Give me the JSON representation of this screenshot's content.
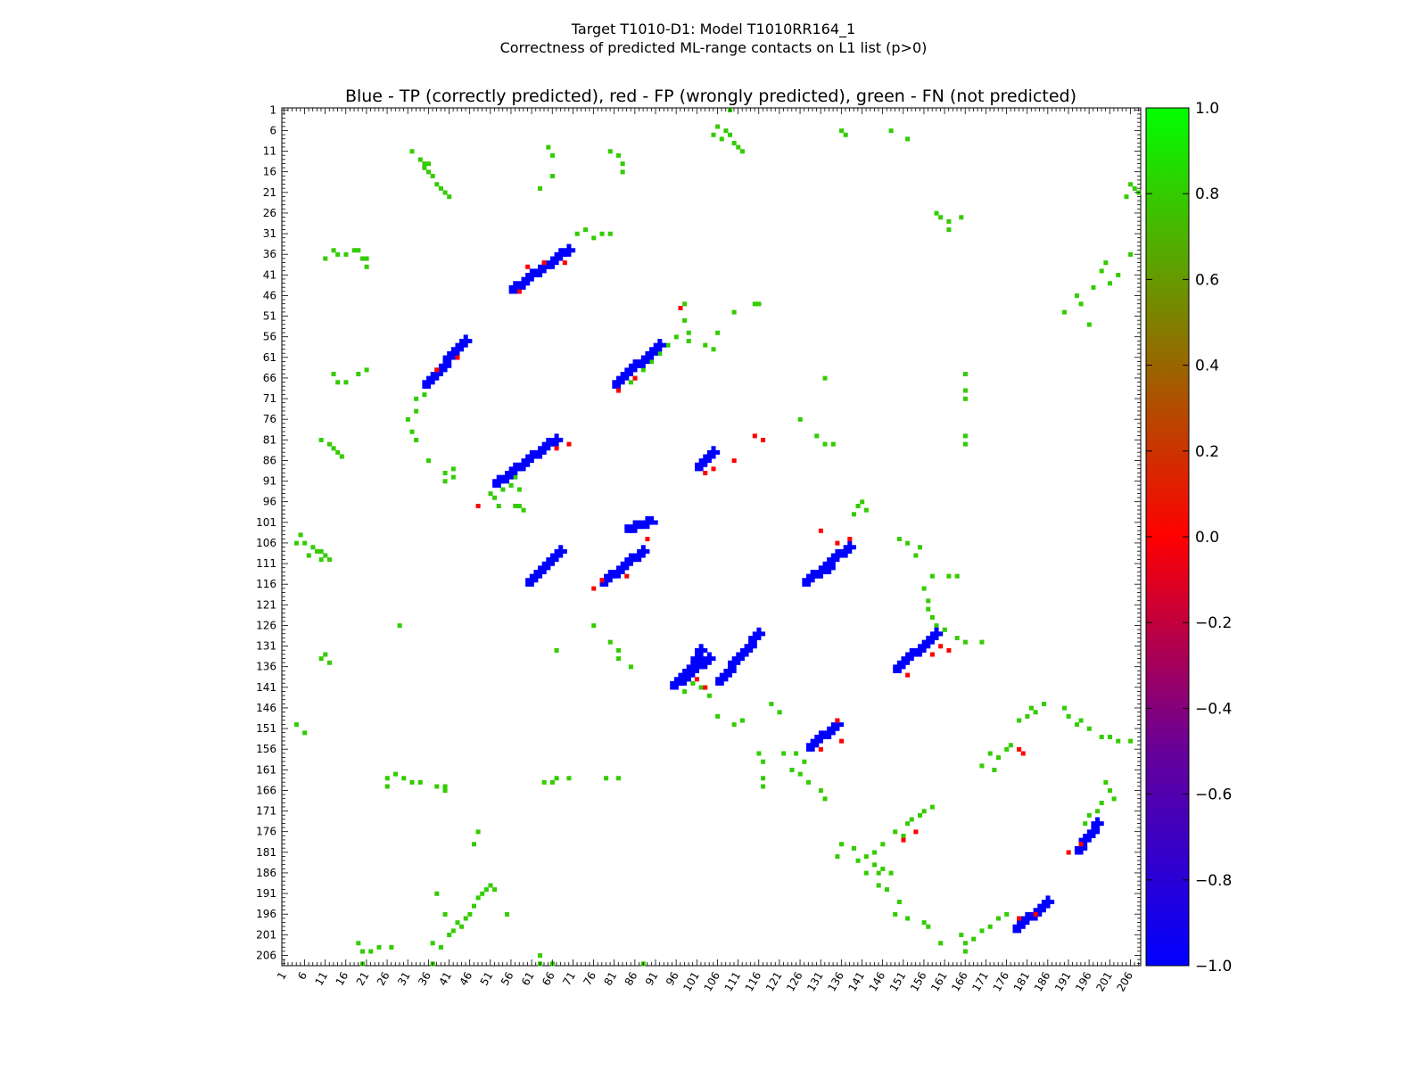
{
  "header": {
    "line1": "Target T1010-D1: Model T1010RR164_1",
    "line2": "Correctness of predicted ML-range contacts on L1 list (p>0)"
  },
  "colors": {
    "tp": "#0000ff",
    "fp": "#ff0000",
    "fn": "#33cc00",
    "background": "#ffffff"
  },
  "chart_data": {
    "type": "heatmap",
    "title": "Blue - TP (correctly predicted), red - FP (wrongly predicted), green - FN (not predicted)",
    "xlabel": "",
    "ylabel": "",
    "xlim": [
      1,
      208
    ],
    "ylim": [
      1,
      208
    ],
    "y_inverted": true,
    "tick_labels": [
      "1",
      "6",
      "11",
      "16",
      "21",
      "26",
      "31",
      "36",
      "41",
      "46",
      "51",
      "56",
      "61",
      "66",
      "71",
      "76",
      "81",
      "86",
      "91",
      "96",
      "101",
      "106",
      "111",
      "116",
      "121",
      "126",
      "131",
      "136",
      "141",
      "146",
      "151",
      "156",
      "161",
      "166",
      "171",
      "176",
      "181",
      "186",
      "191",
      "196",
      "201",
      "206"
    ],
    "colorbar": {
      "min": -1.0,
      "max": 1.0,
      "ticks": [
        "1.0",
        "0.8",
        "0.6",
        "0.4",
        "0.2",
        "0.0",
        "−0.2",
        "−0.4",
        "−0.6",
        "−0.8",
        "−1.0"
      ]
    },
    "legend_values": {
      "TP": -1.0,
      "FP": 0.0,
      "FN": 1.0
    },
    "tp_segments": [
      [
        56,
        45,
        70,
        35
      ],
      [
        81,
        68,
        92,
        58
      ],
      [
        35,
        68,
        45,
        57
      ],
      [
        52,
        92,
        67,
        81
      ],
      [
        78,
        116,
        88,
        108
      ],
      [
        106,
        140,
        116,
        128
      ],
      [
        60,
        116,
        68,
        108
      ],
      [
        84,
        103,
        90,
        101
      ],
      [
        95,
        141,
        104,
        134
      ],
      [
        97,
        140,
        102,
        132
      ],
      [
        127,
        116,
        138,
        107
      ],
      [
        130,
        114,
        133,
        112
      ],
      [
        149,
        137,
        159,
        128
      ],
      [
        128,
        156,
        135,
        150
      ],
      [
        193,
        181,
        198,
        174
      ],
      [
        178,
        200,
        186,
        193
      ],
      [
        101,
        88,
        105,
        84
      ]
    ],
    "fp_points": [
      [
        58,
        45
      ],
      [
        60,
        39
      ],
      [
        64,
        38
      ],
      [
        69,
        38
      ],
      [
        43,
        61
      ],
      [
        38,
        64
      ],
      [
        82,
        69
      ],
      [
        86,
        66
      ],
      [
        70,
        82
      ],
      [
        67,
        83
      ],
      [
        76,
        117
      ],
      [
        78,
        115
      ],
      [
        84,
        114
      ],
      [
        89,
        105
      ],
      [
        117,
        81
      ],
      [
        115,
        80
      ],
      [
        110,
        86
      ],
      [
        105,
        88
      ],
      [
        103,
        89
      ],
      [
        103,
        141
      ],
      [
        101,
        139
      ],
      [
        135,
        106
      ],
      [
        131,
        103
      ],
      [
        138,
        105
      ],
      [
        136,
        154
      ],
      [
        135,
        149
      ],
      [
        131,
        156
      ],
      [
        154,
        176
      ],
      [
        151,
        178
      ],
      [
        158,
        133
      ],
      [
        152,
        138
      ],
      [
        179,
        156
      ],
      [
        180,
        157
      ],
      [
        194,
        179
      ],
      [
        191,
        181
      ],
      [
        183,
        196
      ],
      [
        179,
        197
      ],
      [
        48,
        97
      ],
      [
        97,
        49
      ],
      [
        160,
        131
      ],
      [
        162,
        132
      ]
    ],
    "fn_points": [
      [
        108,
        6
      ],
      [
        110,
        9
      ],
      [
        107,
        8
      ],
      [
        111,
        10
      ],
      [
        109,
        7
      ],
      [
        112,
        11
      ],
      [
        106,
        5
      ],
      [
        105,
        7
      ],
      [
        109,
        1
      ],
      [
        65,
        10
      ],
      [
        66,
        12
      ],
      [
        66,
        17
      ],
      [
        63,
        20
      ],
      [
        80,
        11
      ],
      [
        82,
        12
      ],
      [
        83,
        14
      ],
      [
        83,
        16
      ],
      [
        72,
        31
      ],
      [
        74,
        30
      ],
      [
        76,
        32
      ],
      [
        78,
        31
      ],
      [
        80,
        31
      ],
      [
        35,
        14
      ],
      [
        36,
        14
      ],
      [
        36,
        16
      ],
      [
        37,
        17
      ],
      [
        38,
        19
      ],
      [
        39,
        20
      ],
      [
        40,
        21
      ],
      [
        41,
        22
      ],
      [
        20,
        37
      ],
      [
        21,
        37
      ],
      [
        21,
        39
      ],
      [
        18,
        35
      ],
      [
        19,
        35
      ],
      [
        16,
        36
      ],
      [
        14,
        36
      ],
      [
        13,
        35
      ],
      [
        11,
        37
      ],
      [
        32,
        11
      ],
      [
        34,
        13
      ],
      [
        35,
        15
      ],
      [
        136,
        6
      ],
      [
        137,
        7
      ],
      [
        148,
        6
      ],
      [
        152,
        8
      ],
      [
        159,
        26
      ],
      [
        160,
        27
      ],
      [
        162,
        28
      ],
      [
        162,
        30
      ],
      [
        165,
        27
      ],
      [
        206,
        19
      ],
      [
        207,
        20
      ],
      [
        208,
        21
      ],
      [
        205,
        22
      ],
      [
        199,
        40
      ],
      [
        203,
        41
      ],
      [
        206,
        36
      ],
      [
        200,
        38
      ],
      [
        201,
        43
      ],
      [
        197,
        44
      ],
      [
        193,
        46
      ],
      [
        194,
        48
      ],
      [
        190,
        50
      ],
      [
        196,
        53
      ],
      [
        115,
        48
      ],
      [
        116,
        48
      ],
      [
        110,
        50
      ],
      [
        106,
        55
      ],
      [
        98,
        52
      ],
      [
        99,
        55
      ],
      [
        99,
        57
      ],
      [
        98,
        48
      ],
      [
        103,
        58
      ],
      [
        105,
        59
      ],
      [
        96,
        56
      ],
      [
        94,
        58
      ],
      [
        92,
        60
      ],
      [
        90,
        62
      ],
      [
        88,
        64
      ],
      [
        86,
        66
      ],
      [
        85,
        67
      ],
      [
        13,
        65
      ],
      [
        14,
        67
      ],
      [
        16,
        67
      ],
      [
        19,
        65
      ],
      [
        21,
        64
      ],
      [
        33,
        71
      ],
      [
        35,
        70
      ],
      [
        33,
        74
      ],
      [
        31,
        76
      ],
      [
        32,
        79
      ],
      [
        33,
        81
      ],
      [
        10,
        81
      ],
      [
        12,
        82
      ],
      [
        13,
        83
      ],
      [
        14,
        84
      ],
      [
        15,
        85
      ],
      [
        36,
        86
      ],
      [
        40,
        89
      ],
      [
        42,
        90
      ],
      [
        40,
        91
      ],
      [
        42,
        88
      ],
      [
        51,
        94
      ],
      [
        52,
        95
      ],
      [
        53,
        97
      ],
      [
        57,
        97
      ],
      [
        58,
        97
      ],
      [
        59,
        98
      ],
      [
        132,
        66
      ],
      [
        166,
        65
      ],
      [
        166,
        69
      ],
      [
        166,
        71
      ],
      [
        130,
        80
      ],
      [
        132,
        82
      ],
      [
        134,
        82
      ],
      [
        126,
        76
      ],
      [
        166,
        80
      ],
      [
        166,
        82
      ],
      [
        57,
        90
      ],
      [
        56,
        92
      ],
      [
        58,
        93
      ],
      [
        54,
        93
      ],
      [
        5,
        104
      ],
      [
        4,
        106
      ],
      [
        6,
        106
      ],
      [
        8,
        107
      ],
      [
        10,
        108
      ],
      [
        11,
        109
      ],
      [
        12,
        110
      ],
      [
        9,
        108
      ],
      [
        7,
        109
      ],
      [
        10,
        110
      ],
      [
        140,
        97
      ],
      [
        139,
        99
      ],
      [
        141,
        96
      ],
      [
        142,
        98
      ],
      [
        150,
        105
      ],
      [
        152,
        106
      ],
      [
        155,
        107
      ],
      [
        154,
        109
      ],
      [
        158,
        114
      ],
      [
        162,
        114
      ],
      [
        164,
        114
      ],
      [
        156,
        117
      ],
      [
        157,
        120
      ],
      [
        157,
        122
      ],
      [
        158,
        124
      ],
      [
        159,
        126
      ],
      [
        160,
        128
      ],
      [
        161,
        127
      ],
      [
        164,
        129
      ],
      [
        166,
        130
      ],
      [
        170,
        130
      ],
      [
        29,
        126
      ],
      [
        76,
        126
      ],
      [
        80,
        130
      ],
      [
        82,
        132
      ],
      [
        82,
        134
      ],
      [
        85,
        136
      ],
      [
        10,
        134
      ],
      [
        11,
        133
      ],
      [
        12,
        135
      ],
      [
        67,
        132
      ],
      [
        100,
        140
      ],
      [
        102,
        141
      ],
      [
        104,
        143
      ],
      [
        98,
        142
      ],
      [
        106,
        148
      ],
      [
        112,
        149
      ],
      [
        110,
        150
      ],
      [
        119,
        145
      ],
      [
        121,
        147
      ],
      [
        4,
        150
      ],
      [
        6,
        152
      ],
      [
        176,
        156
      ],
      [
        177,
        155
      ],
      [
        174,
        158
      ],
      [
        172,
        157
      ],
      [
        170,
        160
      ],
      [
        173,
        161
      ],
      [
        179,
        149
      ],
      [
        181,
        148
      ],
      [
        182,
        146
      ],
      [
        183,
        147
      ],
      [
        185,
        145
      ],
      [
        190,
        146
      ],
      [
        191,
        148
      ],
      [
        194,
        149
      ],
      [
        196,
        151
      ],
      [
        199,
        153
      ],
      [
        201,
        153
      ],
      [
        203,
        154
      ],
      [
        206,
        154
      ],
      [
        193,
        150
      ],
      [
        116,
        157
      ],
      [
        122,
        157
      ],
      [
        125,
        157
      ],
      [
        127,
        159
      ],
      [
        124,
        161
      ],
      [
        126,
        162
      ],
      [
        128,
        164
      ],
      [
        131,
        166
      ],
      [
        132,
        168
      ],
      [
        117,
        159
      ],
      [
        117,
        163
      ],
      [
        117,
        165
      ],
      [
        26,
        163
      ],
      [
        28,
        162
      ],
      [
        30,
        163
      ],
      [
        32,
        164
      ],
      [
        34,
        164
      ],
      [
        26,
        165
      ],
      [
        38,
        165
      ],
      [
        40,
        165
      ],
      [
        40,
        166
      ],
      [
        64,
        164
      ],
      [
        66,
        164
      ],
      [
        67,
        163
      ],
      [
        70,
        163
      ],
      [
        79,
        163
      ],
      [
        82,
        163
      ],
      [
        200,
        164
      ],
      [
        201,
        166
      ],
      [
        202,
        168
      ],
      [
        199,
        169
      ],
      [
        198,
        171
      ],
      [
        196,
        172
      ],
      [
        195,
        174
      ],
      [
        158,
        170
      ],
      [
        156,
        171
      ],
      [
        155,
        172
      ],
      [
        153,
        173
      ],
      [
        152,
        174
      ],
      [
        149,
        176
      ],
      [
        151,
        177
      ],
      [
        146,
        179
      ],
      [
        144,
        181
      ],
      [
        142,
        182
      ],
      [
        144,
        184
      ],
      [
        146,
        185
      ],
      [
        140,
        183
      ],
      [
        139,
        180
      ],
      [
        136,
        179
      ],
      [
        135,
        182
      ],
      [
        142,
        186
      ],
      [
        145,
        186
      ],
      [
        148,
        186
      ],
      [
        48,
        176
      ],
      [
        47,
        179
      ],
      [
        38,
        191
      ],
      [
        40,
        196
      ],
      [
        42,
        200
      ],
      [
        44,
        199
      ],
      [
        46,
        196
      ],
      [
        48,
        192
      ],
      [
        50,
        190
      ],
      [
        52,
        190
      ],
      [
        55,
        196
      ],
      [
        37,
        203
      ],
      [
        39,
        204
      ],
      [
        41,
        201
      ],
      [
        43,
        198
      ],
      [
        45,
        197
      ],
      [
        47,
        194
      ],
      [
        49,
        191
      ],
      [
        51,
        189
      ],
      [
        145,
        189
      ],
      [
        147,
        190
      ],
      [
        150,
        193
      ],
      [
        149,
        196
      ],
      [
        152,
        197
      ],
      [
        156,
        198
      ],
      [
        157,
        199
      ],
      [
        160,
        203
      ],
      [
        166,
        205
      ],
      [
        166,
        203
      ],
      [
        168,
        202
      ],
      [
        170,
        200
      ],
      [
        172,
        199
      ],
      [
        174,
        197
      ],
      [
        176,
        196
      ],
      [
        165,
        201
      ],
      [
        19,
        203
      ],
      [
        20,
        205
      ],
      [
        22,
        205
      ],
      [
        24,
        204
      ],
      [
        27,
        204
      ],
      [
        20,
        208
      ],
      [
        63,
        206
      ],
      [
        63,
        208
      ],
      [
        66,
        208
      ],
      [
        88,
        208
      ],
      [
        37,
        208
      ]
    ]
  }
}
